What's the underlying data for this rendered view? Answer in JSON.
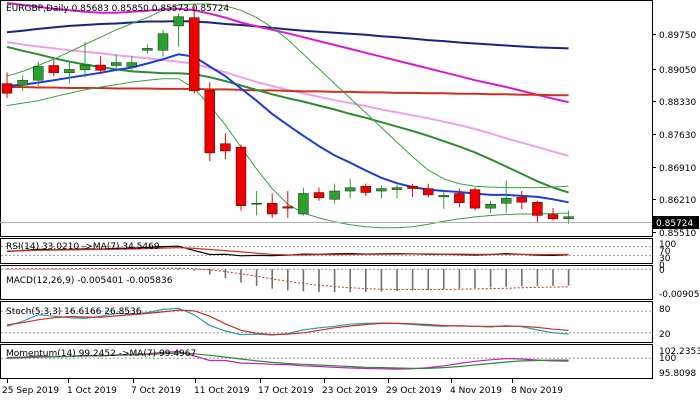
{
  "header": {
    "symbol_line": "EURGBP,Daily  0.85683 0.85850 0.85573 0.85724"
  },
  "price_axis": {
    "ticks": [
      "0.89750",
      "0.89050",
      "0.88330",
      "0.87630",
      "0.86910",
      "0.86210",
      "0.85510"
    ],
    "current_price": "0.85724"
  },
  "time_axis": {
    "labels": [
      "25 Sep 2019",
      "1 Oct 2019",
      "7 Oct 2019",
      "11 Oct 2019",
      "17 Oct 2019",
      "23 Oct 2019",
      "29 Oct 2019",
      "4 Nov 2019",
      "8 Nov 2019"
    ]
  },
  "indicators": {
    "rsi": {
      "title": "RSI(14) 33.0210  ->MA(7) 34.5469",
      "ticks": [
        "100",
        "70",
        "30",
        "0"
      ]
    },
    "macd": {
      "title": "MACD(12,26,9) -0.005401 -0.005836",
      "ticks": [
        "0",
        "-0.009057"
      ]
    },
    "stoch": {
      "title": "Stoch(5,3,3) 16.6166 26.8536",
      "ticks": [
        "80",
        "20"
      ]
    },
    "momentum": {
      "title": "Momentum(14) 99.2452  ->MA(7) 99.4967",
      "ticks": [
        "102.2353",
        "100",
        "95.8098"
      ]
    }
  },
  "colors": {
    "bull": "#2ca02c",
    "bear": "#ee0000",
    "ma_navy": "#1a237e",
    "ma_blue": "#1e3cdc",
    "ma_magenta": "#d81bd0",
    "ma_pink": "#f0a0e8",
    "ma_red": "#d03020",
    "ma_green": "#2e8b2e",
    "bollinger": "#3aa03a"
  },
  "chart_data": {
    "type": "candlestick",
    "symbol": "EURGBP",
    "timeframe": "Daily",
    "last_ohlc": {
      "open": 0.85683,
      "high": 0.8585,
      "low": 0.85573,
      "close": 0.85724
    },
    "y_range": [
      0.8535,
      0.9012
    ],
    "candles": [
      {
        "o": 0.8845,
        "h": 0.8868,
        "l": 0.8815,
        "c": 0.8825
      },
      {
        "o": 0.8842,
        "h": 0.8862,
        "l": 0.883,
        "c": 0.8852
      },
      {
        "o": 0.8852,
        "h": 0.889,
        "l": 0.884,
        "c": 0.888
      },
      {
        "o": 0.8882,
        "h": 0.8893,
        "l": 0.886,
        "c": 0.8867
      },
      {
        "o": 0.8867,
        "h": 0.889,
        "l": 0.8845,
        "c": 0.8874
      },
      {
        "o": 0.8873,
        "h": 0.893,
        "l": 0.8857,
        "c": 0.8883
      },
      {
        "o": 0.8883,
        "h": 0.8901,
        "l": 0.8864,
        "c": 0.8872
      },
      {
        "o": 0.8882,
        "h": 0.8905,
        "l": 0.887,
        "c": 0.8888
      },
      {
        "o": 0.888,
        "h": 0.8901,
        "l": 0.887,
        "c": 0.8888
      },
      {
        "o": 0.8913,
        "h": 0.8925,
        "l": 0.8906,
        "c": 0.8917
      },
      {
        "o": 0.8913,
        "h": 0.8955,
        "l": 0.89,
        "c": 0.8947
      },
      {
        "o": 0.8963,
        "h": 0.8988,
        "l": 0.892,
        "c": 0.8982
      },
      {
        "o": 0.898,
        "h": 0.9003,
        "l": 0.8825,
        "c": 0.883
      },
      {
        "o": 0.8831,
        "h": 0.8848,
        "l": 0.8686,
        "c": 0.8703
      },
      {
        "o": 0.8722,
        "h": 0.8743,
        "l": 0.869,
        "c": 0.8707
      },
      {
        "o": 0.8715,
        "h": 0.872,
        "l": 0.8585,
        "c": 0.8595
      },
      {
        "o": 0.8598,
        "h": 0.8625,
        "l": 0.8575,
        "c": 0.86
      },
      {
        "o": 0.86,
        "h": 0.862,
        "l": 0.857,
        "c": 0.8578
      },
      {
        "o": 0.8593,
        "h": 0.8625,
        "l": 0.857,
        "c": 0.859
      },
      {
        "o": 0.8578,
        "h": 0.8632,
        "l": 0.8575,
        "c": 0.862
      },
      {
        "o": 0.8622,
        "h": 0.8632,
        "l": 0.8605,
        "c": 0.8611
      },
      {
        "o": 0.8608,
        "h": 0.864,
        "l": 0.86,
        "c": 0.8625
      },
      {
        "o": 0.8625,
        "h": 0.865,
        "l": 0.861,
        "c": 0.8632
      },
      {
        "o": 0.8635,
        "h": 0.864,
        "l": 0.8615,
        "c": 0.8622
      },
      {
        "o": 0.8625,
        "h": 0.8637,
        "l": 0.861,
        "c": 0.863
      },
      {
        "o": 0.8628,
        "h": 0.8638,
        "l": 0.861,
        "c": 0.8632
      },
      {
        "o": 0.8635,
        "h": 0.864,
        "l": 0.8613,
        "c": 0.863
      },
      {
        "o": 0.863,
        "h": 0.864,
        "l": 0.8612,
        "c": 0.8617
      },
      {
        "o": 0.8613,
        "h": 0.8625,
        "l": 0.8588,
        "c": 0.8616
      },
      {
        "o": 0.862,
        "h": 0.863,
        "l": 0.8592,
        "c": 0.8601
      },
      {
        "o": 0.8628,
        "h": 0.8632,
        "l": 0.8585,
        "c": 0.859
      },
      {
        "o": 0.859,
        "h": 0.8605,
        "l": 0.858,
        "c": 0.8598
      },
      {
        "o": 0.86,
        "h": 0.8647,
        "l": 0.858,
        "c": 0.861
      },
      {
        "o": 0.8612,
        "h": 0.8625,
        "l": 0.8588,
        "c": 0.8602
      },
      {
        "o": 0.8602,
        "h": 0.8605,
        "l": 0.856,
        "c": 0.8575
      },
      {
        "o": 0.8577,
        "h": 0.859,
        "l": 0.8565,
        "c": 0.8568
      },
      {
        "o": 0.85683,
        "h": 0.8585,
        "l": 0.85573,
        "c": 0.85724
      }
    ],
    "overlays": [
      {
        "name": "",
        "color_key": "ma_navy",
        "values": [
          0.895,
          0.8953,
          0.8957,
          0.896,
          0.8963,
          0.8965,
          0.8967,
          0.8968,
          0.897,
          0.8972,
          0.8972,
          0.8973,
          0.8972,
          0.897,
          0.8967,
          0.8965,
          0.8962,
          0.8959,
          0.8956,
          0.8953,
          0.8951,
          0.8949,
          0.8947,
          0.8945,
          0.8942,
          0.894,
          0.8937,
          0.8934,
          0.8932,
          0.8929,
          0.8927,
          0.8925,
          0.8923,
          0.8921,
          0.8919,
          0.8918,
          0.8917
        ]
      },
      {
        "name": "",
        "color_key": "ma_magenta",
        "values": [
          0.901,
          0.9006,
          0.9002,
          0.8998,
          0.8995,
          0.8992,
          0.899,
          0.899,
          0.8992,
          0.8994,
          0.8997,
          0.8998,
          0.8995,
          0.8988,
          0.898,
          0.897,
          0.8962,
          0.8955,
          0.8948,
          0.894,
          0.8932,
          0.8924,
          0.8916,
          0.8908,
          0.89,
          0.8892,
          0.8884,
          0.8876,
          0.8868,
          0.886,
          0.8852,
          0.8845,
          0.8838,
          0.883,
          0.8822,
          0.8814,
          0.8807
        ]
      },
      {
        "name": "",
        "color_key": "ma_pink",
        "values": [
          0.893,
          0.8925,
          0.8921,
          0.8917,
          0.8913,
          0.891,
          0.8907,
          0.8903,
          0.89,
          0.8897,
          0.8893,
          0.889,
          0.8885,
          0.8877,
          0.8868,
          0.8858,
          0.8848,
          0.884,
          0.8832,
          0.8825,
          0.8818,
          0.8811,
          0.8805,
          0.8799,
          0.8792,
          0.8786,
          0.878,
          0.8774,
          0.8767,
          0.876,
          0.8752,
          0.8743,
          0.8733,
          0.8724,
          0.8715,
          0.8706,
          0.8697
        ]
      },
      {
        "name": "",
        "color_key": "ma_red",
        "values": [
          0.8838,
          0.8838,
          0.8837,
          0.8837,
          0.8836,
          0.8836,
          0.8836,
          0.8835,
          0.8835,
          0.8835,
          0.8834,
          0.8834,
          0.8834,
          0.8833,
          0.8833,
          0.8832,
          0.8831,
          0.8831,
          0.883,
          0.8829,
          0.8829,
          0.8828,
          0.8828,
          0.8827,
          0.8827,
          0.8826,
          0.8826,
          0.8825,
          0.8825,
          0.8824,
          0.8824,
          0.8823,
          0.8823,
          0.8822,
          0.8822,
          0.8821,
          0.8821
        ]
      },
      {
        "name": "",
        "color_key": "ma_green",
        "values": [
          0.892,
          0.8912,
          0.8905,
          0.8897,
          0.889,
          0.8884,
          0.8879,
          0.8874,
          0.887,
          0.8868,
          0.8866,
          0.8866,
          0.8864,
          0.8858,
          0.885,
          0.8841,
          0.8832,
          0.8823,
          0.8815,
          0.8808,
          0.88,
          0.8792,
          0.8783,
          0.8775,
          0.8766,
          0.8757,
          0.8748,
          0.8738,
          0.8727,
          0.8716,
          0.8704,
          0.869,
          0.8675,
          0.866,
          0.8645,
          0.8632,
          0.8622
        ]
      },
      {
        "name": "",
        "color_key": "ma_blue",
        "values": [
          0.884,
          0.8843,
          0.8847,
          0.8852,
          0.8857,
          0.8862,
          0.8867,
          0.8873,
          0.8878,
          0.8886,
          0.8895,
          0.8905,
          0.89,
          0.888,
          0.886,
          0.8835,
          0.881,
          0.8783,
          0.876,
          0.8738,
          0.8717,
          0.8698,
          0.8683,
          0.8667,
          0.8652,
          0.8641,
          0.8633,
          0.8628,
          0.8625,
          0.8623,
          0.862,
          0.8617,
          0.8617,
          0.8615,
          0.8613,
          0.8608,
          0.8602
        ]
      },
      {
        "name": "",
        "color_key": "bollinger",
        "values": [
          0.886,
          0.887,
          0.8882,
          0.8895,
          0.891,
          0.8925,
          0.894,
          0.8955,
          0.8968,
          0.898,
          0.8995,
          0.9006,
          0.9008,
          0.9008,
          0.9004,
          0.8995,
          0.898,
          0.896,
          0.8935,
          0.8905,
          0.8875,
          0.8845,
          0.8815,
          0.8785,
          0.8755,
          0.8725,
          0.8695,
          0.8668,
          0.865,
          0.864,
          0.8635,
          0.8633,
          0.8632,
          0.8632,
          0.8632,
          0.8633,
          0.8635
        ]
      },
      {
        "name": "",
        "color_key": "bollinger",
        "values": [
          0.88,
          0.8805,
          0.881,
          0.8818,
          0.8825,
          0.8832,
          0.8838,
          0.8843,
          0.8848,
          0.8852,
          0.8855,
          0.8855,
          0.8835,
          0.88,
          0.876,
          0.8715,
          0.867,
          0.863,
          0.8598,
          0.858,
          0.857,
          0.8562,
          0.8556,
          0.8552,
          0.855,
          0.855,
          0.8552,
          0.8557,
          0.8563,
          0.8568,
          0.8572,
          0.8575,
          0.8577,
          0.8578,
          0.8578,
          0.8579,
          0.858
        ]
      }
    ],
    "subpanels": {
      "rsi": {
        "range": [
          0,
          100
        ],
        "levels": [
          70,
          30
        ],
        "series": [
          {
            "name": "",
            "color": "#000000",
            "values": [
              48,
              52,
              58,
              55,
              57,
              60,
              58,
              62,
              63,
              66,
              70,
              72,
              52,
              34,
              35,
              28,
              30,
              29,
              31,
              36,
              35,
              37,
              38,
              36,
              37,
              38,
              37,
              35,
              35,
              33,
              32,
              34,
              38,
              35,
              31,
              30,
              33
            ]
          },
          {
            "name": "",
            "color": "#d03020",
            "values": [
              50,
              51,
              53,
              54,
              55,
              56,
              57,
              58,
              59,
              61,
              63,
              65,
              62,
              57,
              52,
              46,
              40,
              35,
              32,
              32,
              33,
              33,
              34,
              35,
              35,
              36,
              37,
              37,
              36,
              36,
              35,
              35,
              35,
              35,
              34,
              34,
              34.5
            ]
          }
        ]
      },
      "macd": {
        "range": [
          -0.0095,
          0.0004
        ],
        "levels": [
          0
        ],
        "histogram": [
          0.0002,
          0.0001,
          0.0001,
          0.0002,
          0.0002,
          0.0003,
          0.0003,
          0.0004,
          0.0004,
          0.0004,
          0.0004,
          0.0004,
          -0.0005,
          -0.0018,
          -0.003,
          -0.0044,
          -0.0055,
          -0.0064,
          -0.007,
          -0.0073,
          -0.0075,
          -0.0076,
          -0.0076,
          -0.0075,
          -0.0074,
          -0.0072,
          -0.007,
          -0.0068,
          -0.0066,
          -0.0064,
          -0.0062,
          -0.006,
          -0.0058,
          -0.0057,
          -0.0056,
          -0.0055,
          -0.0054
        ],
        "signal": [
          0.0001,
          0.0001,
          0.0001,
          0.0001,
          0.0001,
          0.0002,
          0.0002,
          0.0002,
          0.0003,
          0.0003,
          0.0003,
          0.0003,
          0.0002,
          -0.0002,
          -0.0008,
          -0.0015,
          -0.0023,
          -0.0032,
          -0.004,
          -0.0047,
          -0.0053,
          -0.0057,
          -0.0061,
          -0.0064,
          -0.0066,
          -0.0067,
          -0.0067,
          -0.0067,
          -0.0067,
          -0.0066,
          -0.0065,
          -0.0064,
          -0.0063,
          -0.0061,
          -0.006,
          -0.0059,
          -0.0058
        ]
      },
      "stoch": {
        "range": [
          0,
          100
        ],
        "levels": [
          80,
          20
        ],
        "series": [
          {
            "name": "",
            "color": "#2a9fb0",
            "values": [
              38,
              52,
              70,
              66,
              62,
              60,
              66,
              74,
              72,
              76,
              85,
              88,
              70,
              40,
              25,
              15,
              16,
              14,
              18,
              28,
              34,
              38,
              44,
              46,
              47,
              46,
              43,
              40,
              38,
              40,
              38,
              36,
              40,
              37,
              28,
              20,
              16.6
            ]
          },
          {
            "name": "",
            "color": "#d03020",
            "values": [
              42,
              48,
              56,
              62,
              65,
              64,
              63,
              67,
              70,
              74,
              78,
              83,
              81,
              66,
              45,
              27,
              19,
              15,
              16,
              20,
              27,
              34,
              39,
              43,
              46,
              46,
              45,
              43,
              40,
              39,
              38,
              38,
              38,
              38,
              35,
              30,
              26.9
            ]
          }
        ]
      },
      "momentum": {
        "range": [
          95.0,
          103.0
        ],
        "levels": [
          100
        ],
        "series": [
          {
            "name": "",
            "color": "#c020c0",
            "values": [
              100.2,
              100.3,
              100.6,
              100.4,
              100.5,
              100.8,
              100.6,
              100.9,
              101.0,
              101.2,
              101.6,
              101.8,
              100.6,
              99.4,
              99.4,
              98.7,
              98.6,
              98.4,
              98.3,
              98.0,
              97.8,
              97.6,
              97.4,
              97.3,
              97.2,
              97.1,
              97.2,
              97.5,
              98.0,
              98.6,
              99.2,
              99.6,
              99.9,
              99.8,
              99.5,
              99.3,
              99.25
            ]
          },
          {
            "name": "",
            "color": "#2e8b2e",
            "values": [
              100.0,
              100.1,
              100.3,
              100.4,
              100.5,
              100.6,
              100.7,
              100.8,
              100.9,
              101.0,
              101.2,
              101.4,
              101.2,
              100.8,
              100.3,
              99.8,
              99.3,
              98.9,
              98.6,
              98.4,
              98.2,
              98.0,
              97.8,
              97.6,
              97.5,
              97.4,
              97.3,
              97.3,
              97.5,
              97.8,
              98.2,
              98.6,
              99.0,
              99.3,
              99.4,
              99.5,
              99.5
            ]
          }
        ]
      }
    }
  }
}
